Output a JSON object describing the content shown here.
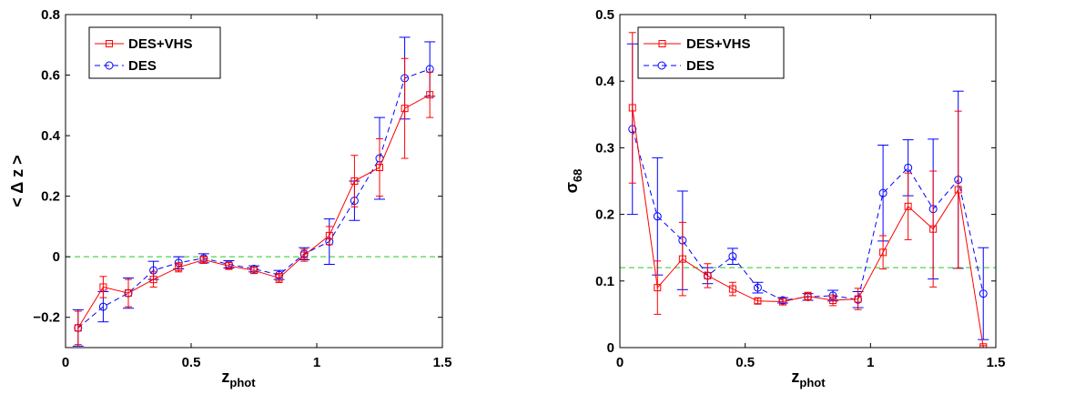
{
  "chart_data": [
    {
      "type": "line",
      "title": "",
      "xlabel_main": "z",
      "xlabel_sub": "phot",
      "ylabel": "< Δ z >",
      "xlim": [
        0,
        1.5
      ],
      "ylim": [
        -0.3,
        0.8
      ],
      "xticks": [
        0,
        0.5,
        1,
        1.5
      ],
      "xtick_labels": [
        "0",
        "0.5",
        "1",
        "1.5"
      ],
      "yticks": [
        -0.2,
        0,
        0.2,
        0.4,
        0.6,
        0.8
      ],
      "ytick_labels": [
        "−0.2",
        "0",
        "0.2",
        "0.4",
        "0.6",
        "0.8"
      ],
      "grid": false,
      "legend_position": "top-left",
      "reference_line": {
        "y": 0,
        "color": "#22cc22",
        "style": "dashed"
      },
      "x": [
        0.05,
        0.15,
        0.25,
        0.35,
        0.45,
        0.55,
        0.65,
        0.75,
        0.85,
        0.95,
        1.05,
        1.15,
        1.25,
        1.35,
        1.45
      ],
      "series": [
        {
          "name": "DES+VHS",
          "color": "#ff0000",
          "line": "solid",
          "marker": "square",
          "values": [
            -0.235,
            -0.1,
            -0.12,
            -0.075,
            -0.035,
            -0.01,
            -0.03,
            -0.045,
            -0.07,
            0.005,
            0.07,
            0.25,
            0.295,
            0.49,
            0.535
          ],
          "errors": [
            0.055,
            0.035,
            0.045,
            0.025,
            0.015,
            0.012,
            0.012,
            0.01,
            0.015,
            0.02,
            0.03,
            0.085,
            0.095,
            0.165,
            0.075
          ]
        },
        {
          "name": "DES",
          "color": "#0000ff",
          "line": "dashed",
          "marker": "circle",
          "values": [
            -0.235,
            -0.165,
            -0.12,
            -0.045,
            -0.02,
            -0.005,
            -0.025,
            -0.04,
            -0.06,
            0.01,
            0.05,
            0.185,
            0.325,
            0.59,
            0.62
          ],
          "errors": [
            0.06,
            0.05,
            0.05,
            0.03,
            0.02,
            0.015,
            0.012,
            0.01,
            0.015,
            0.02,
            0.075,
            0.065,
            0.135,
            0.135,
            0.09
          ]
        }
      ]
    },
    {
      "type": "line",
      "title": "",
      "xlabel_main": "z",
      "xlabel_sub": "phot",
      "ylabel_main": "σ",
      "ylabel_sub": "68",
      "xlim": [
        0,
        1.5
      ],
      "ylim": [
        0,
        0.5
      ],
      "xticks": [
        0,
        0.5,
        1,
        1.5
      ],
      "xtick_labels": [
        "0",
        "0.5",
        "1",
        "1.5"
      ],
      "yticks": [
        0,
        0.1,
        0.2,
        0.3,
        0.4,
        0.5
      ],
      "ytick_labels": [
        "0",
        "0.1",
        "0.2",
        "0.3",
        "0.4",
        "0.5"
      ],
      "grid": false,
      "legend_position": "top-left",
      "reference_line": {
        "y": 0.12,
        "color": "#22cc22",
        "style": "dashed"
      },
      "x": [
        0.05,
        0.15,
        0.25,
        0.35,
        0.45,
        0.55,
        0.65,
        0.75,
        0.85,
        0.95,
        1.05,
        1.15,
        1.25,
        1.35,
        1.45
      ],
      "series": [
        {
          "name": "DES+VHS",
          "color": "#ff0000",
          "line": "solid",
          "marker": "square",
          "values": [
            0.36,
            0.09,
            0.133,
            0.108,
            0.088,
            0.07,
            0.069,
            0.077,
            0.071,
            0.073,
            0.143,
            0.212,
            0.178,
            0.237,
            0.001
          ],
          "errors": [
            0.113,
            0.04,
            0.055,
            0.018,
            0.01,
            0.004,
            0.005,
            0.006,
            0.008,
            0.016,
            0.025,
            0.05,
            0.087,
            0.118,
            0.002
          ]
        },
        {
          "name": "DES",
          "color": "#0000ff",
          "line": "dashed",
          "marker": "circle",
          "values": [
            0.328,
            0.197,
            0.161,
            0.108,
            0.137,
            0.09,
            0.071,
            0.076,
            0.078,
            0.072,
            0.232,
            0.27,
            0.208,
            0.252,
            0.081
          ],
          "errors": [
            0.128,
            0.088,
            0.074,
            0.012,
            0.012,
            0.008,
            0.004,
            0.005,
            0.008,
            0.012,
            0.072,
            0.042,
            0.105,
            0.133,
            0.069
          ]
        }
      ]
    }
  ]
}
